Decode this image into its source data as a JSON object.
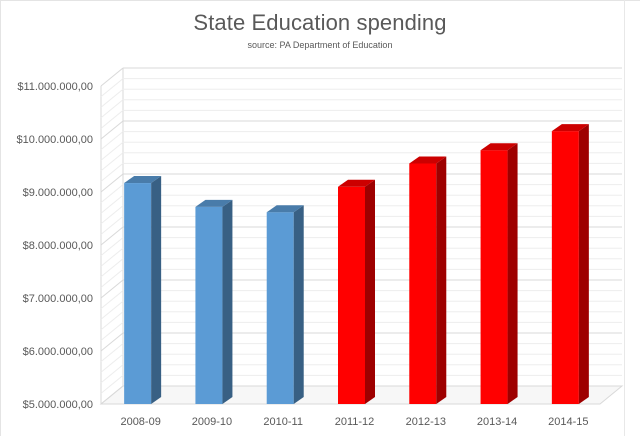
{
  "chart_data": {
    "type": "bar",
    "title": "State Education spending",
    "subtitle": "source: PA Department of Education",
    "xlabel": "",
    "ylabel": "",
    "categories": [
      "2008-09",
      "2009-10",
      "2010-11",
      "2011-12",
      "2012-13",
      "2013-14",
      "2014-15"
    ],
    "values": [
      9150000,
      8700000,
      8600000,
      9080000,
      9520000,
      9770000,
      10130000
    ],
    "bar_colors": [
      "#5b9bd5",
      "#5b9bd5",
      "#5b9bd5",
      "#ff0000",
      "#ff0000",
      "#ff0000",
      "#ff0000"
    ],
    "y_ticks": [
      {
        "value": 5000000,
        "label": "$5.000.000,00"
      },
      {
        "value": 6000000,
        "label": "$6.000.000,00"
      },
      {
        "value": 7000000,
        "label": "$7.000.000,00"
      },
      {
        "value": 8000000,
        "label": "$8.000.000,00"
      },
      {
        "value": 9000000,
        "label": "$9.000.000,00"
      },
      {
        "value": 10000000,
        "label": "$10.000.000,00"
      },
      {
        "value": 11000000,
        "label": "$11.000.000,00"
      }
    ],
    "ylim": [
      5000000,
      11000000
    ],
    "minor_gridlines": true,
    "legend": "none",
    "style": "3d-column"
  }
}
